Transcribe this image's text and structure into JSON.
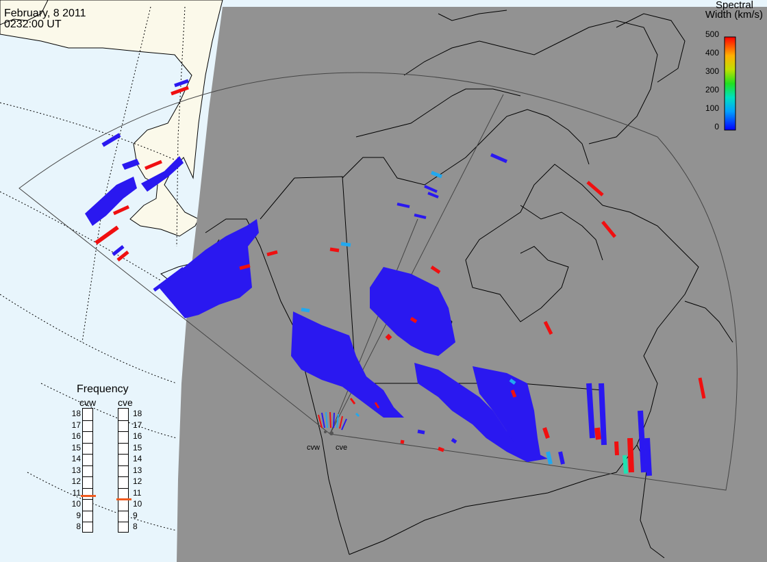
{
  "header": {
    "date": "February, 8 2011",
    "time": "0232:00 UT"
  },
  "colorbar": {
    "title_line1": "Spectral",
    "title_line2": "Width (km/s)",
    "tick_labels": [
      "500",
      "400",
      "300",
      "200",
      "100",
      "0"
    ]
  },
  "radars": [
    {
      "code": "cvw"
    },
    {
      "code": "cve"
    }
  ],
  "frequency_panel": {
    "title": "Frequency",
    "tick_labels": [
      "18",
      "17",
      "16",
      "15",
      "14",
      "13",
      "12",
      "11",
      "10",
      "9",
      "8"
    ],
    "units_range": [
      8,
      18
    ],
    "cvw_value": 10.8,
    "cve_value": 10.5
  },
  "colors": {
    "ocean": "#e8f5fc",
    "land_day": "#fbf9ea",
    "night_shade": "#929292",
    "backscatter_low": "#2a18f0",
    "backscatter_mid": "#22a8ee",
    "backscatter_high": "#f00f10",
    "frequency_marker": "#f05a1e"
  }
}
